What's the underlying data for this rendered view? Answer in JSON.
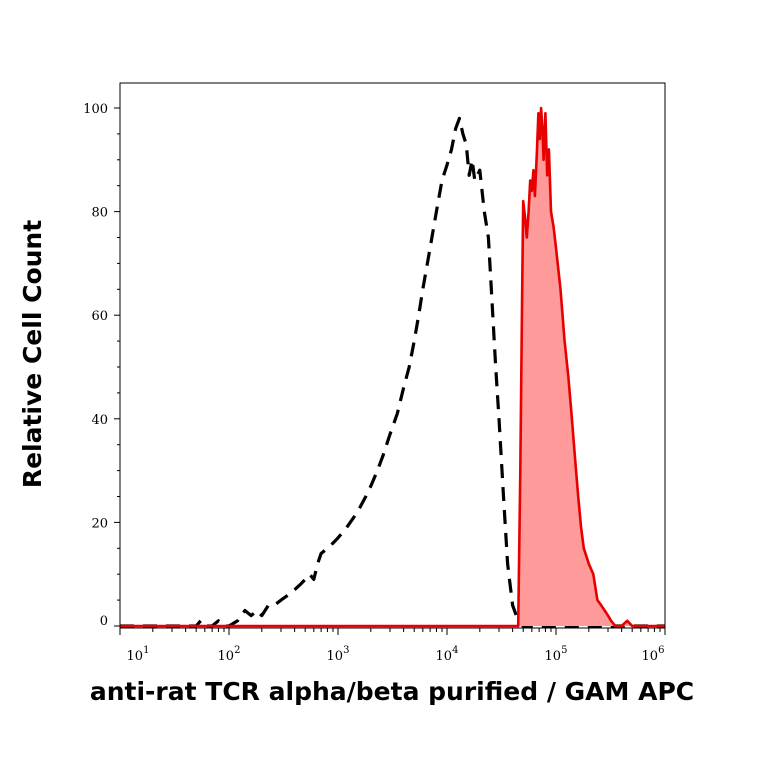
{
  "chart_data": {
    "type": "histogram-overlay",
    "title": "",
    "xlabel": "anti-rat TCR alpha/beta purified / GAM APC",
    "ylabel": "Relative Cell Count",
    "x_scale": "log10",
    "xlim": [
      10,
      1000000
    ],
    "ylim": [
      0,
      100
    ],
    "x_ticks": [
      {
        "base": "10",
        "exp": "1",
        "value": 10
      },
      {
        "base": "10",
        "exp": "2",
        "value": 100
      },
      {
        "base": "10",
        "exp": "3",
        "value": 1000
      },
      {
        "base": "10",
        "exp": "4",
        "value": 10000
      },
      {
        "base": "10",
        "exp": "5",
        "value": 100000
      },
      {
        "base": "10",
        "exp": "6",
        "value": 1000000
      }
    ],
    "y_ticks": [
      {
        "label": "0",
        "value": 0
      },
      {
        "label": "20",
        "value": 20
      },
      {
        "label": "40",
        "value": 40
      },
      {
        "label": "60",
        "value": 60
      },
      {
        "label": "80",
        "value": 80
      },
      {
        "label": "100",
        "value": 100
      }
    ],
    "grid": false,
    "legend": "none",
    "series": [
      {
        "style": "dashed",
        "color": "#000000",
        "fill": "none",
        "points": [
          [
            10,
            0
          ],
          [
            20,
            0
          ],
          [
            40,
            0
          ],
          [
            50,
            0
          ],
          [
            55,
            1
          ],
          [
            60,
            0
          ],
          [
            70,
            0
          ],
          [
            80,
            1
          ],
          [
            90,
            0
          ],
          [
            100,
            0
          ],
          [
            120,
            1
          ],
          [
            140,
            3
          ],
          [
            160,
            2
          ],
          [
            180,
            3
          ],
          [
            200,
            2
          ],
          [
            230,
            4
          ],
          [
            260,
            4
          ],
          [
            300,
            5
          ],
          [
            350,
            6
          ],
          [
            400,
            7
          ],
          [
            450,
            8
          ],
          [
            500,
            9
          ],
          [
            550,
            10
          ],
          [
            600,
            9
          ],
          [
            650,
            12
          ],
          [
            700,
            14
          ],
          [
            800,
            15
          ],
          [
            900,
            16
          ],
          [
            1000,
            17
          ],
          [
            1200,
            19
          ],
          [
            1400,
            21
          ],
          [
            1600,
            23
          ],
          [
            1800,
            25
          ],
          [
            2000,
            27
          ],
          [
            2300,
            30
          ],
          [
            2600,
            33
          ],
          [
            3000,
            37
          ],
          [
            3500,
            41
          ],
          [
            4000,
            46
          ],
          [
            4500,
            50
          ],
          [
            5000,
            55
          ],
          [
            5500,
            60
          ],
          [
            6000,
            65
          ],
          [
            7000,
            73
          ],
          [
            8000,
            80
          ],
          [
            9000,
            86
          ],
          [
            10000,
            89
          ],
          [
            11000,
            92
          ],
          [
            12000,
            96
          ],
          [
            13000,
            98
          ],
          [
            14000,
            95
          ],
          [
            15000,
            93
          ],
          [
            16000,
            87
          ],
          [
            17000,
            90
          ],
          [
            18000,
            86
          ],
          [
            20000,
            88
          ],
          [
            22000,
            80
          ],
          [
            24000,
            75
          ],
          [
            26000,
            62
          ],
          [
            28000,
            50
          ],
          [
            30000,
            40
          ],
          [
            33000,
            25
          ],
          [
            36000,
            12
          ],
          [
            40000,
            4
          ],
          [
            45000,
            1
          ],
          [
            50000,
            0
          ],
          [
            100000,
            0
          ],
          [
            1000000,
            0
          ]
        ]
      },
      {
        "style": "solid",
        "color": "#e60000",
        "fill": "#ff9a9a",
        "points": [
          [
            10,
            0
          ],
          [
            40000,
            0
          ],
          [
            45000,
            0
          ],
          [
            47000,
            30
          ],
          [
            49000,
            65
          ],
          [
            50000,
            82
          ],
          [
            52000,
            79
          ],
          [
            54000,
            75
          ],
          [
            56000,
            80
          ],
          [
            58000,
            86
          ],
          [
            60000,
            84
          ],
          [
            62000,
            88
          ],
          [
            64000,
            83
          ],
          [
            67000,
            92
          ],
          [
            69000,
            99
          ],
          [
            71000,
            94
          ],
          [
            73000,
            100
          ],
          [
            75000,
            96
          ],
          [
            77000,
            90
          ],
          [
            80000,
            99
          ],
          [
            83000,
            87
          ],
          [
            86000,
            92
          ],
          [
            90000,
            80
          ],
          [
            95000,
            77
          ],
          [
            100000,
            73
          ],
          [
            110000,
            65
          ],
          [
            120000,
            55
          ],
          [
            130000,
            48
          ],
          [
            140000,
            40
          ],
          [
            150000,
            32
          ],
          [
            160000,
            25
          ],
          [
            170000,
            19
          ],
          [
            180000,
            15
          ],
          [
            200000,
            12
          ],
          [
            220000,
            10
          ],
          [
            240000,
            5
          ],
          [
            260000,
            4
          ],
          [
            280000,
            3
          ],
          [
            300000,
            2
          ],
          [
            320000,
            1
          ],
          [
            350000,
            0
          ],
          [
            400000,
            0
          ],
          [
            450000,
            1
          ],
          [
            500000,
            0
          ],
          [
            1000000,
            0
          ]
        ]
      }
    ]
  }
}
